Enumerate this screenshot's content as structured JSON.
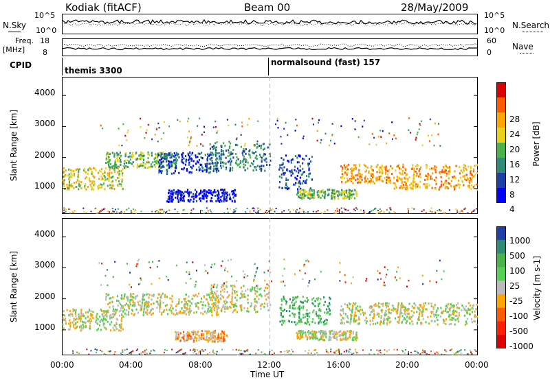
{
  "header": {
    "station": "Kodiak (fitACF)",
    "beam": "Beam 00",
    "date": "28/May/2009"
  },
  "top_panels": {
    "nsky_label": "N.Sky",
    "nsky_ticks": [
      "10^5",
      "10^0"
    ],
    "nsearch_label": "N.Search",
    "freq_label_1": "Freq.",
    "freq_label_2": "[MHz]",
    "freq_ticks": [
      "18",
      "8"
    ],
    "nave_label": "Nave",
    "nave_ticks": [
      "60",
      "0"
    ],
    "cpid_label": "CPID",
    "cpid_programs": [
      "themis 3300",
      "normalsound (fast) 157"
    ]
  },
  "chart_data": [
    {
      "type": "heatmap",
      "name": "power",
      "ylabel": "Slant Range [km]",
      "yticks": [
        1000,
        2000,
        3000,
        4000
      ],
      "ylim": [
        180,
        4600
      ],
      "xlim": [
        0,
        24
      ],
      "colorbar_label": "Power [dB]",
      "colorbar_ticks": [
        "28",
        "24",
        "20",
        "16",
        "12",
        "8",
        "4"
      ],
      "colorbar_colors": [
        "#dd0000",
        "#ff5a00",
        "#ffa500",
        "#e8d21e",
        "#49b349",
        "#2e8b74",
        "#1c3fa8",
        "#0000ff"
      ],
      "echo_bands": [
        {
          "x0": 0.0,
          "x1": 3.5,
          "y0": 1000,
          "y1": 1700,
          "level": 3
        },
        {
          "x0": 2.5,
          "x1": 6.5,
          "y0": 1700,
          "y1": 2200,
          "level": 4
        },
        {
          "x0": 5.5,
          "x1": 9.0,
          "y0": 1500,
          "y1": 2200,
          "level": 6
        },
        {
          "x0": 6.0,
          "x1": 10.0,
          "y0": 600,
          "y1": 1000,
          "level": 7
        },
        {
          "x0": 8.5,
          "x1": 12.0,
          "y0": 1600,
          "y1": 2500,
          "level": 5
        },
        {
          "x0": 12.5,
          "x1": 14.5,
          "y0": 1000,
          "y1": 2100,
          "level": 6
        },
        {
          "x0": 13.5,
          "x1": 17.0,
          "y0": 700,
          "y1": 1000,
          "level": 4
        },
        {
          "x0": 16.0,
          "x1": 19.0,
          "y0": 1200,
          "y1": 1800,
          "level": 2
        },
        {
          "x0": 19.0,
          "x1": 24.0,
          "y0": 1000,
          "y1": 1800,
          "level": 2
        }
      ]
    },
    {
      "type": "heatmap",
      "name": "velocity",
      "ylabel": "Slant Range [km]",
      "yticks": [
        1000,
        2000,
        3000,
        4000
      ],
      "ylim": [
        180,
        4600
      ],
      "xlim": [
        0,
        24
      ],
      "xticks": [
        "00:00",
        "04:00",
        "08:00",
        "12:00",
        "16:00",
        "20:00",
        "00:00"
      ],
      "xlabel": "Time UT",
      "colorbar_label": "Velocity [m s-1]",
      "colorbar_ticks": [
        "1000",
        "500",
        "100",
        "25",
        "-25",
        "-100",
        "-500",
        "-1000"
      ],
      "colorbar_colors": [
        "#1c3fa8",
        "#2e8b74",
        "#49b349",
        "#55d055",
        "#bbbbbb",
        "#ffa500",
        "#ff5a00",
        "#ff2000",
        "#dd0000"
      ],
      "echo_bands": [
        {
          "x0": 0.0,
          "x1": 3.5,
          "y0": 1000,
          "y1": 1700,
          "level": 4
        },
        {
          "x0": 2.5,
          "x1": 9.0,
          "y0": 1500,
          "y1": 2200,
          "level": 4
        },
        {
          "x0": 6.5,
          "x1": 9.5,
          "y0": 650,
          "y1": 1000,
          "level": 5
        },
        {
          "x0": 8.5,
          "x1": 12.0,
          "y0": 1600,
          "y1": 2500,
          "level": 4
        },
        {
          "x0": 12.5,
          "x1": 15.5,
          "y0": 1200,
          "y1": 2100,
          "level": 2
        },
        {
          "x0": 13.5,
          "x1": 17.0,
          "y0": 700,
          "y1": 1000,
          "level": 4
        },
        {
          "x0": 16.0,
          "x1": 24.0,
          "y0": 1200,
          "y1": 1900,
          "level": 4
        }
      ]
    }
  ]
}
